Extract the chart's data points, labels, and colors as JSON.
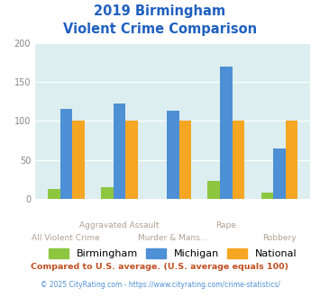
{
  "title_line1": "2019 Birmingham",
  "title_line2": "Violent Crime Comparison",
  "birmingham": [
    13,
    15,
    0,
    23,
    8
  ],
  "michigan": [
    116,
    123,
    113,
    170,
    65
  ],
  "national": [
    100,
    100,
    100,
    100,
    100
  ],
  "colors": {
    "birmingham": "#8dc63f",
    "michigan": "#4d90d5",
    "national": "#f5a623"
  },
  "ylim": [
    0,
    200
  ],
  "yticks": [
    0,
    50,
    100,
    150,
    200
  ],
  "legend_labels": [
    "Birmingham",
    "Michigan",
    "National"
  ],
  "cat_top": [
    "",
    "Aggravated Assault",
    "",
    "Rape",
    ""
  ],
  "cat_bottom": [
    "All Violent Crime",
    "",
    "Murder & Mans...",
    "",
    "Robbery"
  ],
  "footnote1": "Compared to U.S. average. (U.S. average equals 100)",
  "footnote2": "© 2025 CityRating.com - https://www.cityrating.com/crime-statistics/",
  "title_color": "#2060c0",
  "footnote1_color": "#c05020",
  "footnote2_color": "#4d90d5",
  "xtick_color": "#b0a090",
  "bg_color": "#ddeef0",
  "fig_bg": "#ffffff"
}
